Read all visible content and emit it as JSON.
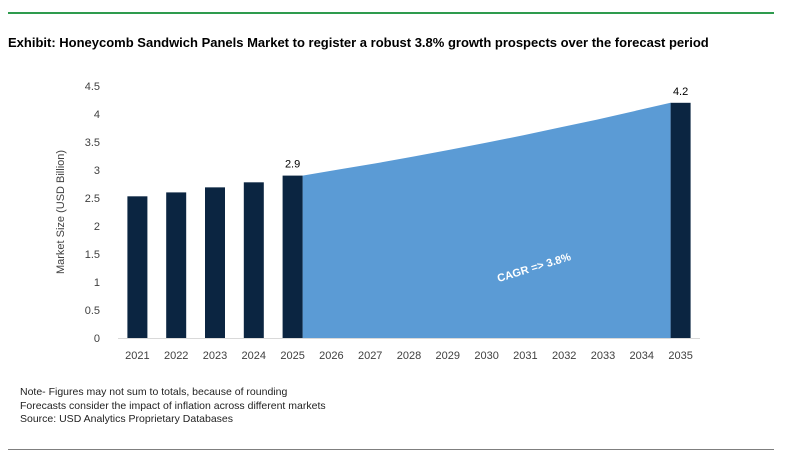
{
  "title": "Exhibit: Honeycomb Sandwich Panels Market to register a robust 3.8% growth prospects over the forecast period",
  "notes": [
    "Note- Figures may not sum to totals, because of rounding",
    "Forecasts consider the impact of inflation across different markets",
    "Source: USD Analytics Proprietary Databases"
  ],
  "colors": {
    "bar": "#0b2541",
    "area": "#5b9bd5",
    "rule_top": "#2e9b4e",
    "rule_bottom": "#7f7f7f",
    "axis_text": "#404040"
  },
  "chart_data": {
    "type": "bar",
    "ylabel": "Market Size (USD Billion)",
    "ylim": [
      0,
      4.5
    ],
    "yticks": [
      "0",
      "0.5",
      "1",
      "1.5",
      "2",
      "2.5",
      "3",
      "3.5",
      "4",
      "4.5"
    ],
    "categories": [
      "2021",
      "2022",
      "2023",
      "2024",
      "2025",
      "2026",
      "2027",
      "2028",
      "2029",
      "2030",
      "2031",
      "2032",
      "2033",
      "2034",
      "2035"
    ],
    "bars": [
      {
        "x": "2021",
        "value": 2.53
      },
      {
        "x": "2022",
        "value": 2.6
      },
      {
        "x": "2023",
        "value": 2.69
      },
      {
        "x": "2024",
        "value": 2.78
      },
      {
        "x": "2025",
        "value": 2.9,
        "label": "2.9"
      },
      {
        "x": "2035",
        "value": 4.2,
        "label": "4.2"
      }
    ],
    "area": {
      "x": [
        "2025",
        "2026",
        "2027",
        "2028",
        "2029",
        "2030",
        "2031",
        "2032",
        "2033",
        "2034",
        "2035"
      ],
      "values": [
        2.9,
        3.01,
        3.12,
        3.24,
        3.36,
        3.49,
        3.62,
        3.76,
        3.9,
        4.05,
        4.2
      ]
    },
    "annotation": "CAGR => 3.8%",
    "grid": false,
    "legend": "none"
  }
}
